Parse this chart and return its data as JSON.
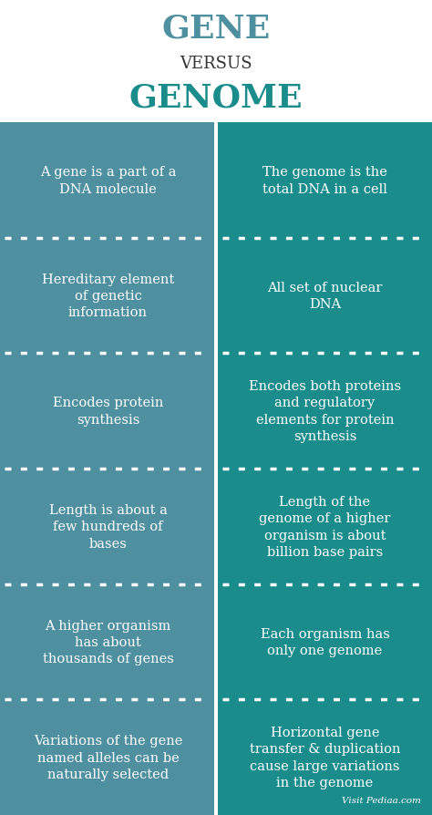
{
  "title_gene": "GENE",
  "title_versus": "VERSUS",
  "title_genome": "GENOME",
  "gene_color": "#4e8fa0",
  "genome_color": "#1a8c8c",
  "title_gene_color": "#4e8fa0",
  "title_genome_color": "#1a8c8c",
  "title_versus_color": "#333333",
  "text_color": "#ffffff",
  "bg_color": "#ffffff",
  "watermark": "Visit Pediaa.com",
  "rows": [
    {
      "gene": "A gene is a part of a\nDNA molecule",
      "genome": "The genome is the\ntotal DNA in a cell"
    },
    {
      "gene": "Hereditary element\nof genetic\ninformation",
      "genome": "All set of nuclear\nDNA"
    },
    {
      "gene": "Encodes protein\nsynthesis",
      "genome": "Encodes both proteins\nand regulatory\nelements for protein\nsynthesis"
    },
    {
      "gene": "Length is about a\nfew hundreds of\nbases",
      "genome": "Length of the\ngenome of a higher\norganism is about\nbillion base pairs"
    },
    {
      "gene": "A higher organism\nhas about\nthousands of genes",
      "genome": "Each organism has\nonly one genome"
    },
    {
      "gene": "Variations of the gene\nnamed alleles can be\nnaturally selected",
      "genome": "Horizontal gene\ntransfer & duplication\ncause large variations\nin the genome"
    }
  ]
}
